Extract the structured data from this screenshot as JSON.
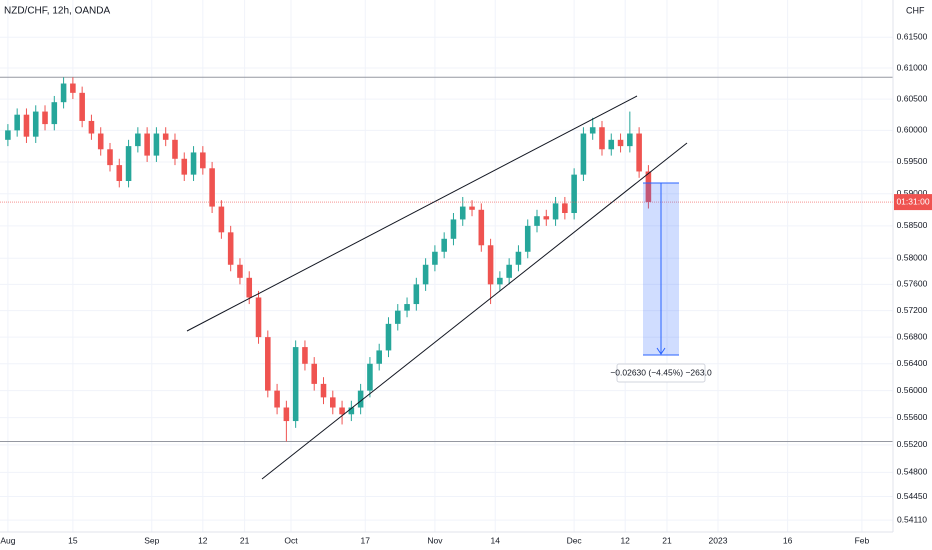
{
  "chart_data": {
    "type": "candlestick",
    "title": "NZD/CHF, 12h, OANDA",
    "currency_label": "CHF",
    "countdown": "01:31:00",
    "measure_label": "−0.02630 (−4.45%) −263.0",
    "log_scale": true,
    "grid": true,
    "up_color": "#26a69a",
    "down_color": "#ef5350",
    "x": [
      0,
      2,
      4,
      6,
      8,
      10,
      12,
      14,
      16,
      18,
      20,
      22,
      24,
      26,
      28,
      30,
      32,
      34,
      36,
      38,
      40,
      42,
      44,
      46,
      48,
      50,
      52,
      54,
      56,
      58,
      60,
      62,
      64,
      66,
      68,
      70,
      72,
      74,
      76,
      78,
      80,
      82,
      84,
      86,
      88,
      90,
      92,
      94,
      96,
      98,
      100,
      102,
      104,
      106,
      108,
      110,
      112,
      114,
      116,
      118,
      120,
      122,
      124,
      126,
      128,
      130,
      132,
      134,
      136,
      138
    ],
    "open": [
      0.5985,
      0.6,
      0.6025,
      0.599,
      0.603,
      0.601,
      0.6045,
      0.6075,
      0.606,
      0.6015,
      0.5995,
      0.597,
      0.5945,
      0.592,
      0.5975,
      0.5995,
      0.596,
      0.5995,
      0.5985,
      0.5955,
      0.593,
      0.5965,
      0.594,
      0.588,
      0.584,
      0.579,
      0.577,
      0.574,
      0.568,
      0.56,
      0.5575,
      0.5555,
      0.5665,
      0.564,
      0.561,
      0.559,
      0.5575,
      0.5565,
      0.5575,
      0.56,
      0.564,
      0.566,
      0.57,
      0.572,
      0.573,
      0.576,
      0.579,
      0.581,
      0.583,
      0.586,
      0.588,
      0.5875,
      0.582,
      0.576,
      0.577,
      0.579,
      0.581,
      0.585,
      0.5865,
      0.586,
      0.5885,
      0.587,
      0.593,
      0.5995,
      0.6005,
      0.597,
      0.5985,
      0.5975,
      0.5995,
      0.5935
    ],
    "high": [
      0.601,
      0.6035,
      0.6035,
      0.604,
      0.604,
      0.6055,
      0.6085,
      0.6085,
      0.607,
      0.6025,
      0.6005,
      0.598,
      0.5955,
      0.5985,
      0.6005,
      0.6005,
      0.6005,
      0.6005,
      0.5995,
      0.5965,
      0.5975,
      0.5975,
      0.595,
      0.589,
      0.585,
      0.58,
      0.578,
      0.575,
      0.569,
      0.561,
      0.5585,
      0.5675,
      0.5675,
      0.565,
      0.562,
      0.56,
      0.5585,
      0.5585,
      0.561,
      0.565,
      0.567,
      0.571,
      0.573,
      0.574,
      0.577,
      0.58,
      0.582,
      0.584,
      0.587,
      0.5895,
      0.589,
      0.5885,
      0.583,
      0.578,
      0.58,
      0.582,
      0.586,
      0.5875,
      0.5875,
      0.5895,
      0.5895,
      0.594,
      0.6005,
      0.602,
      0.6015,
      0.5995,
      0.5995,
      0.603,
      0.6005,
      0.5945
    ],
    "low": [
      0.5975,
      0.599,
      0.598,
      0.598,
      0.6,
      0.6,
      0.6035,
      0.605,
      0.6005,
      0.5985,
      0.596,
      0.5935,
      0.591,
      0.591,
      0.5965,
      0.595,
      0.595,
      0.5975,
      0.5945,
      0.592,
      0.592,
      0.593,
      0.587,
      0.583,
      0.578,
      0.576,
      0.573,
      0.567,
      0.559,
      0.5565,
      0.5525,
      0.5545,
      0.563,
      0.56,
      0.558,
      0.5565,
      0.555,
      0.5555,
      0.5565,
      0.559,
      0.563,
      0.565,
      0.569,
      0.571,
      0.572,
      0.575,
      0.578,
      0.58,
      0.582,
      0.585,
      0.5865,
      0.581,
      0.573,
      0.575,
      0.576,
      0.578,
      0.58,
      0.584,
      0.585,
      0.585,
      0.586,
      0.586,
      0.592,
      0.5985,
      0.596,
      0.596,
      0.5965,
      0.5965,
      0.5925,
      0.5877
    ],
    "close": [
      0.6,
      0.6025,
      0.599,
      0.603,
      0.601,
      0.6045,
      0.6075,
      0.606,
      0.6015,
      0.5995,
      0.597,
      0.5945,
      0.592,
      0.5975,
      0.5995,
      0.596,
      0.5995,
      0.5985,
      0.5955,
      0.593,
      0.5965,
      0.594,
      0.588,
      0.584,
      0.579,
      0.577,
      0.574,
      0.568,
      0.56,
      0.5575,
      0.5555,
      0.5665,
      0.564,
      0.561,
      0.559,
      0.5575,
      0.5565,
      0.5575,
      0.56,
      0.564,
      0.566,
      0.57,
      0.572,
      0.573,
      0.576,
      0.579,
      0.581,
      0.583,
      0.586,
      0.588,
      0.5875,
      0.582,
      0.576,
      0.577,
      0.579,
      0.581,
      0.585,
      0.5865,
      0.586,
      0.5885,
      0.587,
      0.593,
      0.5995,
      0.6005,
      0.597,
      0.5985,
      0.5975,
      0.5995,
      0.5935,
      0.5887
    ],
    "horizontal_lines": [
      0.6085,
      0.5525
    ],
    "xlim": [
      -1.7,
      190.7
    ],
    "ylim": [
      0.5394,
      0.6211
    ],
    "xticks": [
      {
        "value": 0,
        "label": "Aug"
      },
      {
        "value": 14,
        "label": "15"
      },
      {
        "value": 31,
        "label": "Sep"
      },
      {
        "value": 42,
        "label": "12"
      },
      {
        "value": 51,
        "label": "21"
      },
      {
        "value": 61,
        "label": "Oct"
      },
      {
        "value": 77,
        "label": "17"
      },
      {
        "value": 92,
        "label": "Nov"
      },
      {
        "value": 105,
        "label": "14"
      },
      {
        "value": 122,
        "label": "Dec"
      },
      {
        "value": 133,
        "label": "12"
      },
      {
        "value": 142,
        "label": "21"
      },
      {
        "value": 153,
        "label": "2023"
      },
      {
        "value": 168,
        "label": "16"
      },
      {
        "value": 184,
        "label": "Feb"
      }
    ],
    "yticks": [
      {
        "value": 0.615,
        "label": "0.61500"
      },
      {
        "value": 0.61,
        "label": "0.61000"
      },
      {
        "value": 0.605,
        "label": "0.60500"
      },
      {
        "value": 0.6,
        "label": "0.60000"
      },
      {
        "value": 0.595,
        "label": "0.59500"
      },
      {
        "value": 0.59,
        "label": "0.59000"
      },
      {
        "value": 0.585,
        "label": "0.58500"
      },
      {
        "value": 0.58,
        "label": "0.58000"
      },
      {
        "value": 0.576,
        "label": "0.57600"
      },
      {
        "value": 0.572,
        "label": "0.57200"
      },
      {
        "value": 0.568,
        "label": "0.56800"
      },
      {
        "value": 0.564,
        "label": "0.56400"
      },
      {
        "value": 0.56,
        "label": "0.56000"
      },
      {
        "value": 0.556,
        "label": "0.55600"
      },
      {
        "value": 0.552,
        "label": "0.55200"
      },
      {
        "value": 0.548,
        "label": "0.54800"
      },
      {
        "value": 0.5445,
        "label": "0.54450"
      },
      {
        "value": 0.5411,
        "label": "0.54110"
      }
    ]
  }
}
